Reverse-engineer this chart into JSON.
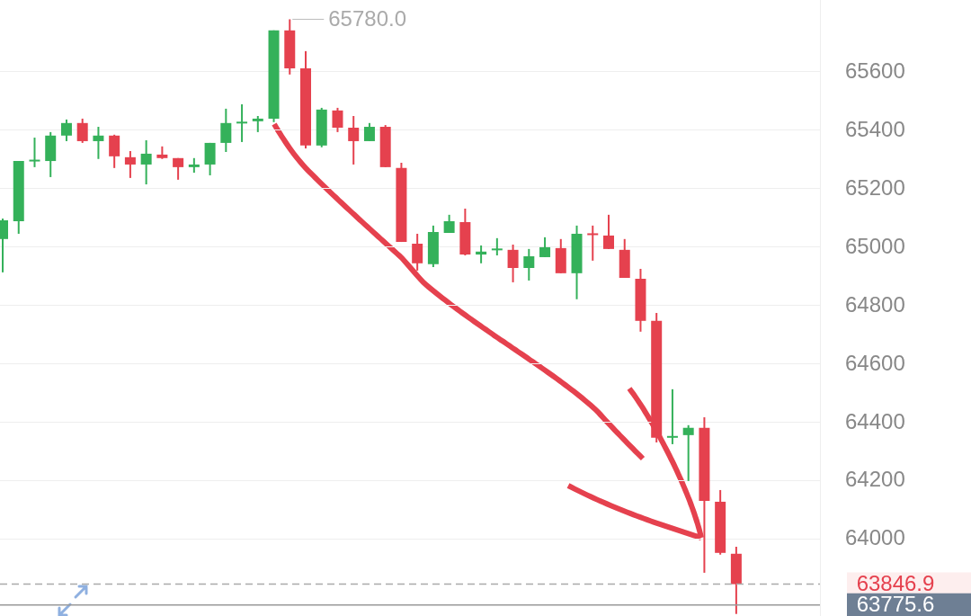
{
  "chart_data": {
    "type": "candlestick",
    "categories": [
      null,
      null,
      null,
      null,
      null,
      null,
      null,
      null,
      null,
      null,
      null,
      null,
      null,
      null,
      null,
      null,
      null,
      null,
      null,
      null,
      null,
      null,
      null,
      null,
      null,
      null,
      null,
      null,
      null,
      null,
      null,
      null,
      null,
      null,
      null,
      null,
      null,
      null,
      null,
      null,
      null,
      null,
      null,
      null,
      null,
      null,
      null
    ],
    "ohlc": [
      [
        65028,
        65098,
        64914,
        65092
      ],
      [
        65089,
        65295,
        65046,
        65295
      ],
      [
        65295,
        65375,
        65274,
        65298
      ],
      [
        65295,
        65394,
        65240,
        65382
      ],
      [
        65382,
        65437,
        65363,
        65425
      ],
      [
        65425,
        65440,
        65357,
        65363
      ],
      [
        65363,
        65412,
        65302,
        65382
      ],
      [
        65382,
        65385,
        65271,
        65311
      ],
      [
        65308,
        65329,
        65237,
        65283
      ],
      [
        65283,
        65366,
        65215,
        65320
      ],
      [
        65317,
        65345,
        65302,
        65305
      ],
      [
        65305,
        65305,
        65231,
        65274
      ],
      [
        65274,
        65305,
        65255,
        65283
      ],
      [
        65283,
        65357,
        65246,
        65357
      ],
      [
        65357,
        65474,
        65326,
        65425
      ],
      [
        65425,
        65489,
        65360,
        65428
      ],
      [
        65431,
        65449,
        65394,
        65440
      ],
      [
        65440,
        65742,
        65428,
        65742
      ],
      [
        65742,
        65780,
        65591,
        65612
      ],
      [
        65612,
        65671,
        65338,
        65348
      ],
      [
        65348,
        65477,
        65342,
        65471
      ],
      [
        65468,
        65477,
        65394,
        65409
      ],
      [
        65409,
        65449,
        65283,
        65363
      ],
      [
        65363,
        65425,
        65363,
        65412
      ],
      [
        65412,
        65418,
        65274,
        65274
      ],
      [
        65271,
        65289,
        65018,
        65018
      ],
      [
        65012,
        65046,
        64920,
        64945
      ],
      [
        64942,
        65074,
        64932,
        65052
      ],
      [
        65049,
        65111,
        65049,
        65089
      ],
      [
        65086,
        65132,
        64972,
        64975
      ],
      [
        64975,
        65006,
        64945,
        64985
      ],
      [
        64991,
        65031,
        64972,
        64994
      ],
      [
        64991,
        65009,
        64880,
        64929
      ],
      [
        64929,
        64994,
        64886,
        64969
      ],
      [
        64966,
        65034,
        64966,
        65000
      ],
      [
        64997,
        65028,
        64911,
        64911
      ],
      [
        64911,
        65074,
        64822,
        65046
      ],
      [
        65046,
        65074,
        64954,
        65043
      ],
      [
        65040,
        65111,
        64994,
        64994
      ],
      [
        64991,
        65028,
        64895,
        64895
      ],
      [
        64892,
        64926,
        64711,
        64748
      ],
      [
        64748,
        64775,
        64332,
        64348
      ],
      [
        64348,
        64514,
        64326,
        64354
      ],
      [
        64357,
        64391,
        64200,
        64382
      ],
      [
        64382,
        64418,
        63886,
        64132
      ],
      [
        64129,
        64169,
        63948,
        63954
      ],
      [
        63951,
        63975,
        63745,
        63846.9
      ]
    ],
    "colors": [
      "#34b15a",
      "#34b15a",
      "#34b15a",
      "#34b15a",
      "#34b15a",
      "#e5414e",
      "#34b15a",
      "#e5414e",
      "#e5414e",
      "#34b15a",
      "#e5414e",
      "#e5414e",
      "#34b15a",
      "#34b15a",
      "#34b15a",
      "#34b15a",
      "#34b15a",
      "#34b15a",
      "#e5414e",
      "#e5414e",
      "#34b15a",
      "#e5414e",
      "#e5414e",
      "#34b15a",
      "#e5414e",
      "#e5414e",
      "#e5414e",
      "#34b15a",
      "#34b15a",
      "#e5414e",
      "#34b15a",
      "#34b15a",
      "#e5414e",
      "#34b15a",
      "#34b15a",
      "#e5414e",
      "#34b15a",
      "#e5414e",
      "#e5414e",
      "#e5414e",
      "#e5414e",
      "#e5414e",
      "#34b15a",
      "#34b15a",
      "#e5414e",
      "#e5414e",
      "#e5414e"
    ],
    "ylim": [
      63738,
      65846
    ],
    "yticks": [
      64000,
      64200,
      64400,
      64600,
      64800,
      65000,
      65200,
      65400,
      65600
    ],
    "grid": "y",
    "tick_labels": "y",
    "annotations": [
      "65780.0"
    ],
    "ref_lines": [
      {
        "axis": "y",
        "value": 63846.9,
        "label": "63846.9",
        "color": "#aaaaaa",
        "line_style": "dashed"
      },
      {
        "axis": "y",
        "value": 63775.6,
        "label": "63775.6",
        "color": "#999999",
        "line_style": "solid"
      }
    ]
  }
}
